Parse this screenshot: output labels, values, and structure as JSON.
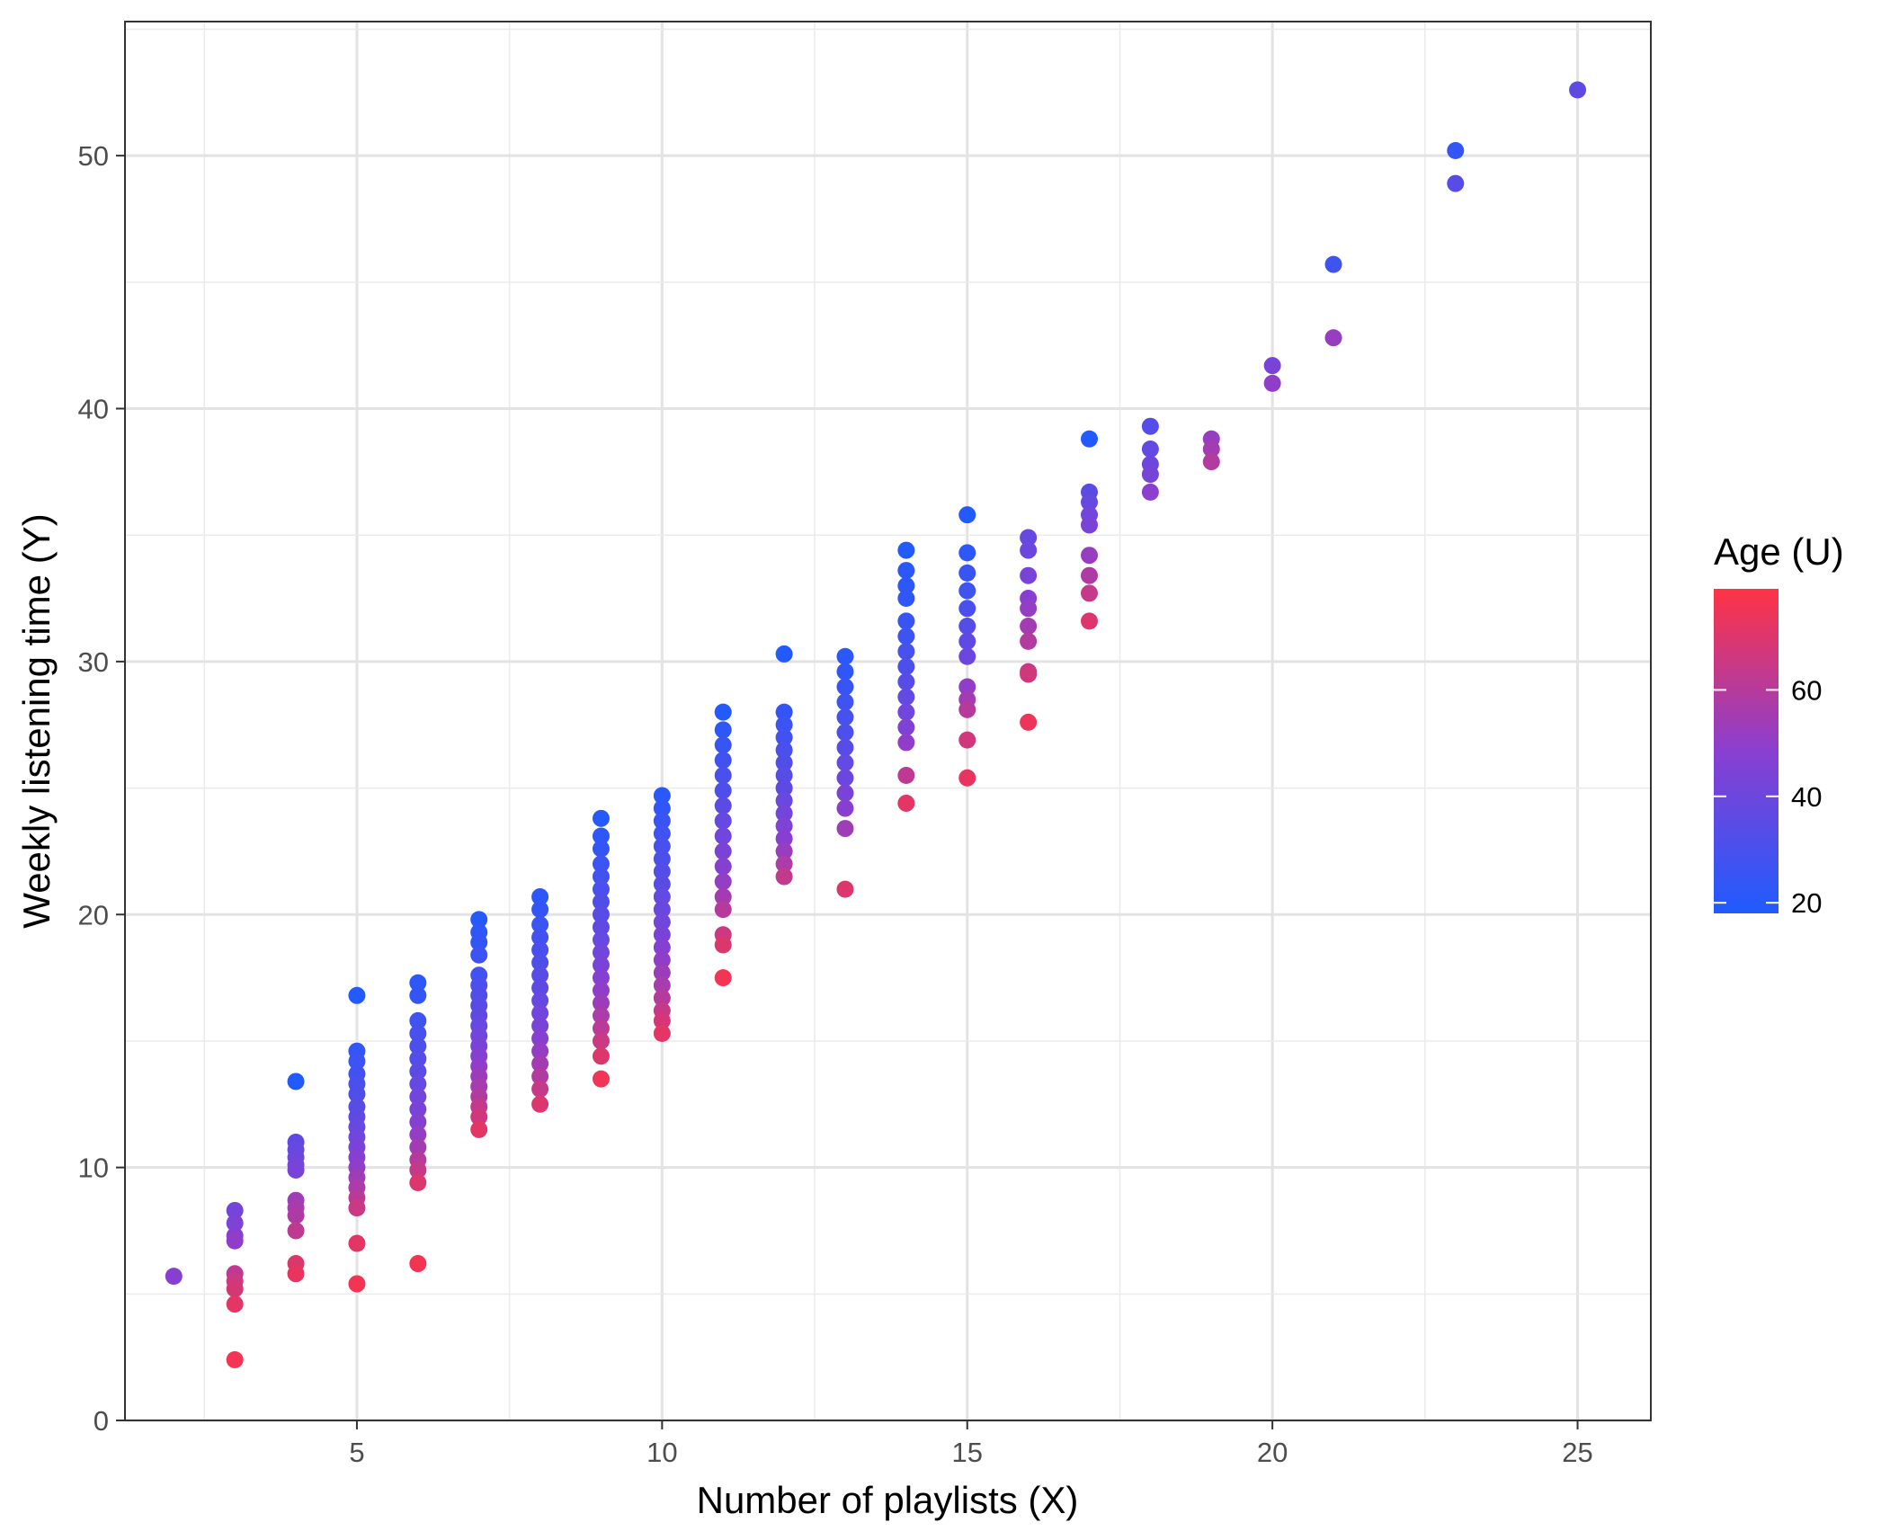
{
  "chart_data": {
    "type": "scatter",
    "title": "",
    "xlabel": "Number of playlists (X)",
    "ylabel": "Weekly listening time (Y)",
    "xlim": [
      1.2,
      26.2
    ],
    "ylim": [
      0,
      55.3
    ],
    "x_ticks": [
      5,
      10,
      15,
      20,
      25
    ],
    "y_ticks": [
      0,
      10,
      20,
      30,
      40,
      50
    ],
    "grid": true,
    "color_scale": {
      "title": "Age (U)",
      "variable": "Age",
      "low_color": "#1f5bff",
      "mid_color": "#8a3fd0",
      "high_color": "#ff3344",
      "range": [
        18,
        79
      ],
      "ticks": [
        20,
        40,
        60
      ]
    },
    "points": [
      [
        2,
        5.7,
        47
      ],
      [
        3,
        8.3,
        42
      ],
      [
        3,
        7.8,
        45
      ],
      [
        3,
        7.3,
        48
      ],
      [
        3,
        7.1,
        50
      ],
      [
        3,
        5.8,
        62
      ],
      [
        3,
        5.5,
        65
      ],
      [
        3,
        5.2,
        68
      ],
      [
        3,
        4.6,
        72
      ],
      [
        3,
        2.4,
        76
      ],
      [
        4,
        13.4,
        19
      ],
      [
        4,
        11.0,
        36
      ],
      [
        4,
        10.7,
        38
      ],
      [
        4,
        10.4,
        40
      ],
      [
        4,
        10.1,
        42
      ],
      [
        4,
        9.9,
        44
      ],
      [
        4,
        8.7,
        54
      ],
      [
        4,
        8.4,
        56
      ],
      [
        4,
        8.1,
        58
      ],
      [
        4,
        7.5,
        62
      ],
      [
        4,
        6.2,
        70
      ],
      [
        4,
        5.8,
        73
      ],
      [
        5,
        16.8,
        19
      ],
      [
        5,
        14.6,
        24
      ],
      [
        5,
        14.2,
        26
      ],
      [
        5,
        13.7,
        28
      ],
      [
        5,
        13.3,
        30
      ],
      [
        5,
        12.9,
        32
      ],
      [
        5,
        12.4,
        34
      ],
      [
        5,
        12.0,
        36
      ],
      [
        5,
        11.6,
        38
      ],
      [
        5,
        11.2,
        41
      ],
      [
        5,
        10.8,
        44
      ],
      [
        5,
        10.4,
        47
      ],
      [
        5,
        10.0,
        50
      ],
      [
        5,
        9.6,
        54
      ],
      [
        5,
        9.2,
        57
      ],
      [
        5,
        8.8,
        61
      ],
      [
        5,
        8.4,
        65
      ],
      [
        5,
        7.0,
        72
      ],
      [
        5,
        5.4,
        76
      ],
      [
        6,
        17.3,
        22
      ],
      [
        6,
        16.8,
        24
      ],
      [
        6,
        15.8,
        27
      ],
      [
        6,
        15.3,
        29
      ],
      [
        6,
        14.8,
        31
      ],
      [
        6,
        14.3,
        33
      ],
      [
        6,
        13.8,
        35
      ],
      [
        6,
        13.3,
        38
      ],
      [
        6,
        12.8,
        41
      ],
      [
        6,
        12.3,
        44
      ],
      [
        6,
        11.8,
        47
      ],
      [
        6,
        11.3,
        51
      ],
      [
        6,
        10.8,
        55
      ],
      [
        6,
        10.3,
        60
      ],
      [
        6,
        9.9,
        64
      ],
      [
        6,
        9.4,
        70
      ],
      [
        6,
        6.2,
        76
      ],
      [
        7,
        19.8,
        20
      ],
      [
        7,
        19.3,
        22
      ],
      [
        7,
        18.9,
        24
      ],
      [
        7,
        18.4,
        26
      ],
      [
        7,
        17.6,
        28
      ],
      [
        7,
        17.2,
        30
      ],
      [
        7,
        16.8,
        32
      ],
      [
        7,
        16.4,
        34
      ],
      [
        7,
        16.0,
        36
      ],
      [
        7,
        15.6,
        38
      ],
      [
        7,
        15.2,
        41
      ],
      [
        7,
        14.8,
        44
      ],
      [
        7,
        14.4,
        47
      ],
      [
        7,
        14.0,
        50
      ],
      [
        7,
        13.6,
        53
      ],
      [
        7,
        13.2,
        56
      ],
      [
        7,
        12.8,
        59
      ],
      [
        7,
        12.4,
        63
      ],
      [
        7,
        12.0,
        67
      ],
      [
        7,
        11.5,
        72
      ],
      [
        8,
        20.7,
        22
      ],
      [
        8,
        20.2,
        24
      ],
      [
        8,
        19.6,
        26
      ],
      [
        8,
        19.1,
        28
      ],
      [
        8,
        18.6,
        30
      ],
      [
        8,
        18.1,
        32
      ],
      [
        8,
        17.6,
        34
      ],
      [
        8,
        17.1,
        36
      ],
      [
        8,
        16.6,
        38
      ],
      [
        8,
        16.1,
        41
      ],
      [
        8,
        15.6,
        44
      ],
      [
        8,
        15.1,
        47
      ],
      [
        8,
        14.6,
        51
      ],
      [
        8,
        14.1,
        55
      ],
      [
        8,
        13.6,
        59
      ],
      [
        8,
        13.1,
        64
      ],
      [
        8,
        12.5,
        70
      ],
      [
        9,
        23.8,
        20
      ],
      [
        9,
        23.1,
        22
      ],
      [
        9,
        22.6,
        24
      ],
      [
        9,
        22.0,
        26
      ],
      [
        9,
        21.5,
        28
      ],
      [
        9,
        21.0,
        30
      ],
      [
        9,
        20.5,
        32
      ],
      [
        9,
        20.0,
        34
      ],
      [
        9,
        19.5,
        36
      ],
      [
        9,
        19.0,
        38
      ],
      [
        9,
        18.5,
        41
      ],
      [
        9,
        18.0,
        44
      ],
      [
        9,
        17.5,
        47
      ],
      [
        9,
        17.0,
        50
      ],
      [
        9,
        16.5,
        53
      ],
      [
        9,
        16.0,
        57
      ],
      [
        9,
        15.5,
        61
      ],
      [
        9,
        15.0,
        65
      ],
      [
        9,
        14.4,
        70
      ],
      [
        9,
        13.5,
        75
      ],
      [
        10,
        24.7,
        21
      ],
      [
        10,
        24.2,
        23
      ],
      [
        10,
        23.7,
        25
      ],
      [
        10,
        23.2,
        27
      ],
      [
        10,
        22.7,
        29
      ],
      [
        10,
        22.2,
        31
      ],
      [
        10,
        21.7,
        33
      ],
      [
        10,
        21.2,
        35
      ],
      [
        10,
        20.7,
        37
      ],
      [
        10,
        20.2,
        39
      ],
      [
        10,
        19.7,
        41
      ],
      [
        10,
        19.2,
        44
      ],
      [
        10,
        18.7,
        47
      ],
      [
        10,
        18.2,
        50
      ],
      [
        10,
        17.7,
        53
      ],
      [
        10,
        17.2,
        56
      ],
      [
        10,
        16.7,
        60
      ],
      [
        10,
        16.2,
        64
      ],
      [
        10,
        15.8,
        68
      ],
      [
        10,
        15.3,
        72
      ],
      [
        11,
        28.0,
        19
      ],
      [
        11,
        27.3,
        22
      ],
      [
        11,
        26.7,
        25
      ],
      [
        11,
        26.1,
        28
      ],
      [
        11,
        25.5,
        30
      ],
      [
        11,
        24.9,
        32
      ],
      [
        11,
        24.3,
        35
      ],
      [
        11,
        23.7,
        38
      ],
      [
        11,
        23.1,
        41
      ],
      [
        11,
        22.5,
        44
      ],
      [
        11,
        21.9,
        47
      ],
      [
        11,
        21.3,
        51
      ],
      [
        11,
        20.7,
        55
      ],
      [
        11,
        20.2,
        60
      ],
      [
        11,
        19.2,
        66
      ],
      [
        11,
        18.8,
        70
      ],
      [
        11,
        17.5,
        76
      ],
      [
        12,
        30.3,
        19
      ],
      [
        12,
        28.0,
        24
      ],
      [
        12,
        27.5,
        26
      ],
      [
        12,
        27.0,
        28
      ],
      [
        12,
        26.5,
        30
      ],
      [
        12,
        26.0,
        32
      ],
      [
        12,
        25.5,
        34
      ],
      [
        12,
        25.0,
        36
      ],
      [
        12,
        24.5,
        39
      ],
      [
        12,
        24.0,
        42
      ],
      [
        12,
        23.5,
        45
      ],
      [
        12,
        23.0,
        48
      ],
      [
        12,
        22.5,
        52
      ],
      [
        12,
        22.0,
        57
      ],
      [
        12,
        21.5,
        63
      ],
      [
        13,
        30.2,
        21
      ],
      [
        13,
        29.6,
        23
      ],
      [
        13,
        29.0,
        25
      ],
      [
        13,
        28.4,
        27
      ],
      [
        13,
        27.8,
        29
      ],
      [
        13,
        27.2,
        31
      ],
      [
        13,
        26.6,
        34
      ],
      [
        13,
        26.0,
        37
      ],
      [
        13,
        25.4,
        40
      ],
      [
        13,
        24.8,
        44
      ],
      [
        13,
        24.2,
        48
      ],
      [
        13,
        23.4,
        54
      ],
      [
        13,
        21.0,
        70
      ],
      [
        14,
        34.4,
        19
      ],
      [
        14,
        33.6,
        21
      ],
      [
        14,
        33.0,
        22
      ],
      [
        14,
        32.5,
        23
      ],
      [
        14,
        31.6,
        25
      ],
      [
        14,
        31.0,
        27
      ],
      [
        14,
        30.4,
        29
      ],
      [
        14,
        29.8,
        31
      ],
      [
        14,
        29.2,
        34
      ],
      [
        14,
        28.6,
        37
      ],
      [
        14,
        28.0,
        41
      ],
      [
        14,
        27.4,
        45
      ],
      [
        14,
        26.8,
        50
      ],
      [
        14,
        25.5,
        62
      ],
      [
        14,
        24.4,
        72
      ],
      [
        15,
        35.8,
        19
      ],
      [
        15,
        34.3,
        22
      ],
      [
        15,
        33.5,
        25
      ],
      [
        15,
        32.8,
        27
      ],
      [
        15,
        32.1,
        30
      ],
      [
        15,
        31.4,
        33
      ],
      [
        15,
        30.8,
        36
      ],
      [
        15,
        30.2,
        40
      ],
      [
        15,
        29.0,
        50
      ],
      [
        15,
        28.5,
        55
      ],
      [
        15,
        28.1,
        60
      ],
      [
        15,
        26.9,
        67
      ],
      [
        15,
        25.4,
        73
      ],
      [
        16,
        34.9,
        38
      ],
      [
        16,
        34.4,
        40
      ],
      [
        16,
        33.4,
        44
      ],
      [
        16,
        32.5,
        48
      ],
      [
        16,
        32.1,
        51
      ],
      [
        16,
        31.4,
        55
      ],
      [
        16,
        30.8,
        59
      ],
      [
        16,
        29.6,
        64
      ],
      [
        16,
        29.5,
        67
      ],
      [
        16,
        27.6,
        74
      ],
      [
        17,
        38.8,
        19
      ],
      [
        17,
        36.7,
        35
      ],
      [
        17,
        36.3,
        38
      ],
      [
        17,
        35.8,
        41
      ],
      [
        17,
        35.4,
        44
      ],
      [
        17,
        34.2,
        52
      ],
      [
        17,
        33.4,
        58
      ],
      [
        17,
        32.7,
        64
      ],
      [
        17,
        31.6,
        70
      ],
      [
        18,
        39.3,
        33
      ],
      [
        18,
        38.4,
        37
      ],
      [
        18,
        37.8,
        40
      ],
      [
        18,
        37.4,
        43
      ],
      [
        18,
        36.7,
        49
      ],
      [
        19,
        38.8,
        52
      ],
      [
        19,
        38.4,
        55
      ],
      [
        19,
        37.9,
        59
      ],
      [
        20,
        41.7,
        44
      ],
      [
        20,
        41.0,
        50
      ],
      [
        21,
        45.7,
        27
      ],
      [
        21,
        42.8,
        52
      ],
      [
        23,
        50.2,
        24
      ],
      [
        23,
        48.9,
        34
      ],
      [
        25,
        52.6,
        36
      ]
    ]
  }
}
